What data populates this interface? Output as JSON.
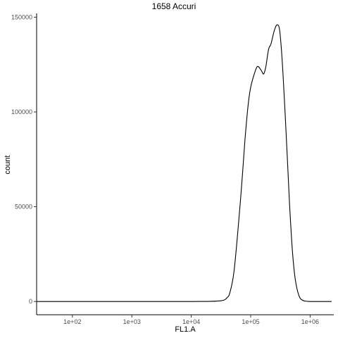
{
  "chart_data": {
    "type": "line",
    "title": "1658 Accuri",
    "xlabel": "FL1.A",
    "ylabel": "count",
    "x_scale": "log10",
    "xlim": [
      25,
      2500000
    ],
    "ylim": [
      -7000,
      152000
    ],
    "x_ticks": [
      {
        "value": 100,
        "label": "1e+02"
      },
      {
        "value": 1000,
        "label": "1e+03"
      },
      {
        "value": 10000,
        "label": "1e+04"
      },
      {
        "value": 100000,
        "label": "1e+05"
      },
      {
        "value": 1000000,
        "label": "1e+06"
      }
    ],
    "y_ticks": [
      {
        "value": 0,
        "label": "0"
      },
      {
        "value": 50000,
        "label": "50000"
      },
      {
        "value": 100000,
        "label": "100000"
      },
      {
        "value": 150000,
        "label": "150000"
      }
    ],
    "grid": false,
    "series": [
      {
        "points": [
          [
            25,
            0
          ],
          [
            1000,
            0
          ],
          [
            10000,
            0
          ],
          [
            30000,
            300
          ],
          [
            40000,
            2000
          ],
          [
            45000,
            5000
          ],
          [
            52000,
            15000
          ],
          [
            60000,
            35000
          ],
          [
            70000,
            60000
          ],
          [
            80000,
            85000
          ],
          [
            90000,
            103000
          ],
          [
            100000,
            113000
          ],
          [
            115000,
            120000
          ],
          [
            130000,
            124000
          ],
          [
            150000,
            122000
          ],
          [
            165000,
            120000
          ],
          [
            180000,
            124000
          ],
          [
            200000,
            133000
          ],
          [
            220000,
            136000
          ],
          [
            250000,
            143000
          ],
          [
            280000,
            146000
          ],
          [
            310000,
            142000
          ],
          [
            350000,
            120000
          ],
          [
            400000,
            85000
          ],
          [
            450000,
            52000
          ],
          [
            500000,
            28000
          ],
          [
            560000,
            12000
          ],
          [
            650000,
            3000
          ],
          [
            750000,
            600
          ],
          [
            900000,
            100
          ],
          [
            1200000,
            0
          ],
          [
            2300000,
            0
          ]
        ]
      }
    ]
  }
}
